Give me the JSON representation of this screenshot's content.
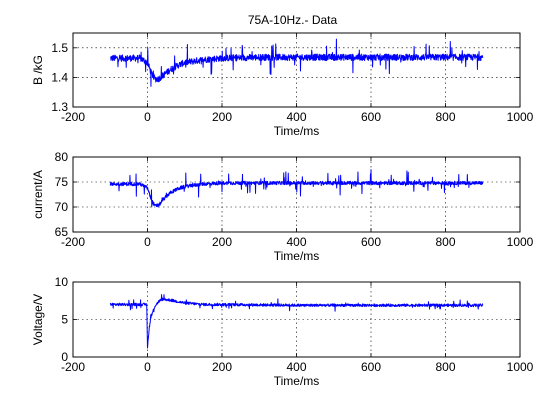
{
  "chart_data": [
    {
      "type": "line",
      "title": "75A-10Hz.- Data",
      "xlabel": "Time/ms",
      "ylabel": "B /kG",
      "xlim": [
        -200,
        1000
      ],
      "ylim": [
        1.3,
        1.55
      ],
      "xticks": [
        -200,
        0,
        200,
        400,
        600,
        800,
        1000
      ],
      "xtick_labels": [
        "-200",
        "0",
        "200",
        "400",
        "600",
        "800",
        "1000"
      ],
      "yticks": [
        1.3,
        1.4,
        1.5
      ],
      "ytick_labels": [
        "1.3",
        "1.4",
        "1.5"
      ],
      "grid": true,
      "line_color": "#0000ff",
      "series": [
        {
          "x": [
            -100,
            -20,
            0,
            10,
            20,
            30,
            40,
            60,
            80,
            100,
            150,
            200,
            300,
            400,
            600,
            800,
            900
          ],
          "y": [
            1.465,
            1.465,
            1.45,
            1.415,
            1.395,
            1.395,
            1.405,
            1.425,
            1.44,
            1.45,
            1.46,
            1.465,
            1.468,
            1.468,
            1.468,
            1.468,
            1.468
          ]
        }
      ]
    },
    {
      "type": "line",
      "title": "",
      "xlabel": "Time/ms",
      "ylabel": "current/A",
      "xlim": [
        -200,
        1000
      ],
      "ylim": [
        65,
        80
      ],
      "xticks": [
        -200,
        0,
        200,
        400,
        600,
        800,
        1000
      ],
      "xtick_labels": [
        "-200",
        "0",
        "200",
        "400",
        "600",
        "800",
        "1000"
      ],
      "yticks": [
        65,
        70,
        75,
        80
      ],
      "ytick_labels": [
        "65",
        "70",
        "75",
        "80"
      ],
      "grid": true,
      "line_color": "#0000ff",
      "series": [
        {
          "x": [
            -100,
            -20,
            0,
            10,
            20,
            30,
            40,
            60,
            80,
            100,
            150,
            200,
            300,
            400,
            600,
            800,
            900
          ],
          "y": [
            74.6,
            74.6,
            73.8,
            71.5,
            70.2,
            70.3,
            71.3,
            72.8,
            73.6,
            74.1,
            74.6,
            74.8,
            74.8,
            74.8,
            74.8,
            74.8,
            74.8
          ]
        }
      ]
    },
    {
      "type": "line",
      "title": "",
      "xlabel": "Time/ms",
      "ylabel": "Voltage/V",
      "xlim": [
        -200,
        1000
      ],
      "ylim": [
        0,
        10
      ],
      "xticks": [
        -200,
        0,
        200,
        400,
        600,
        800,
        1000
      ],
      "xtick_labels": [
        "-200",
        "0",
        "200",
        "400",
        "600",
        "800",
        "1000"
      ],
      "yticks": [
        0,
        5,
        10
      ],
      "ytick_labels": [
        "0",
        "5",
        "10"
      ],
      "grid": true,
      "line_color": "#0000ff",
      "series": [
        {
          "x": [
            -100,
            -2,
            0,
            2,
            5,
            10,
            20,
            30,
            40,
            60,
            80,
            100,
            150,
            200,
            400,
            600,
            800,
            900
          ],
          "y": [
            7.0,
            7.0,
            1.2,
            2.5,
            4.0,
            5.5,
            6.8,
            7.4,
            7.7,
            7.6,
            7.4,
            7.2,
            7.0,
            7.0,
            6.9,
            6.9,
            6.9,
            6.9
          ]
        }
      ]
    }
  ]
}
